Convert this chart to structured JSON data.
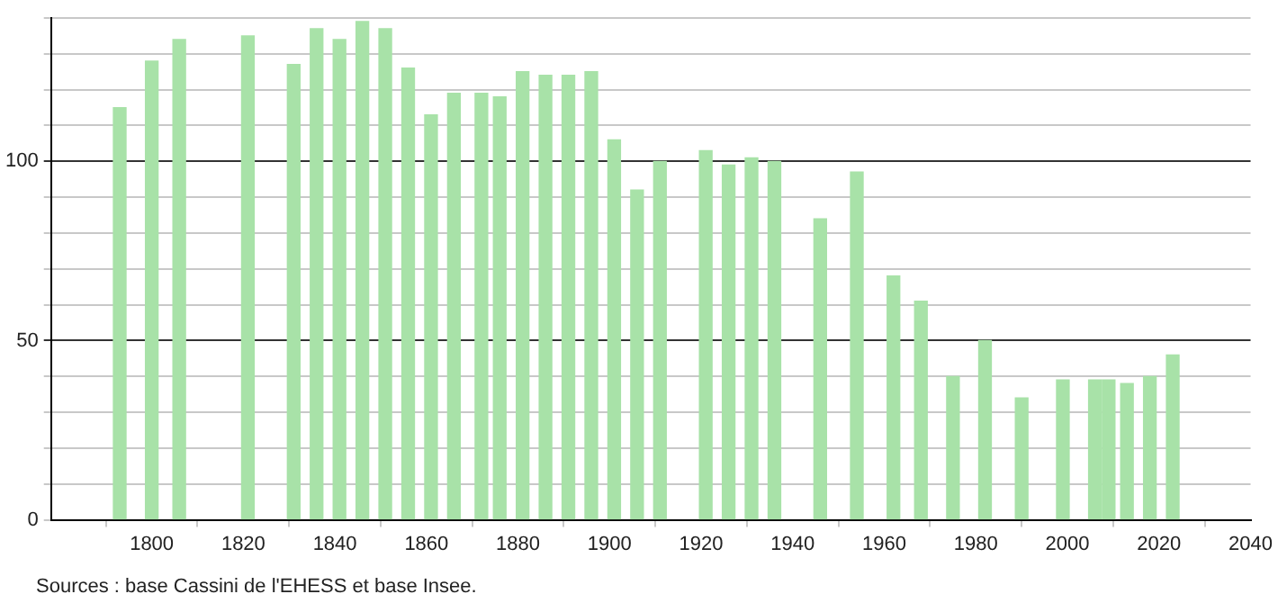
{
  "chart_data": {
    "type": "bar",
    "x": [
      1793,
      1800,
      1806,
      1821,
      1831,
      1836,
      1841,
      1846,
      1851,
      1856,
      1861,
      1866,
      1872,
      1876,
      1881,
      1886,
      1891,
      1896,
      1901,
      1906,
      1911,
      1921,
      1926,
      1931,
      1936,
      1946,
      1954,
      1962,
      1968,
      1975,
      1982,
      1990,
      1999,
      2006,
      2009,
      2013,
      2018,
      2023
    ],
    "values": [
      115,
      128,
      134,
      135,
      127,
      137,
      134,
      139,
      137,
      126,
      113,
      119,
      119,
      118,
      125,
      124,
      124,
      125,
      106,
      92,
      100,
      103,
      99,
      101,
      100,
      84,
      97,
      68,
      61,
      40,
      50,
      34,
      39,
      39,
      39,
      38,
      40,
      46
    ],
    "color": "#a8e2a8",
    "xlim": [
      1778,
      2040
    ],
    "xticks": [
      1800,
      1820,
      1840,
      1860,
      1880,
      1900,
      1920,
      1940,
      1960,
      1980,
      2000,
      2020,
      2040
    ],
    "ylim": [
      0,
      140
    ],
    "yticks": [
      0,
      {
        "value": 10,
        "label": null
      },
      {
        "value": 20,
        "label": null
      },
      {
        "value": 30,
        "label": null
      },
      {
        "value": 40,
        "label": null
      },
      50,
      {
        "value": 60,
        "label": null
      },
      {
        "value": 70,
        "label": null
      },
      {
        "value": 80,
        "label": null
      },
      {
        "value": 90,
        "label": null
      },
      100,
      {
        "value": 110,
        "label": null
      },
      {
        "value": 120,
        "label": null
      },
      {
        "value": 130,
        "label": null
      },
      {
        "value": 140,
        "label": null
      }
    ],
    "grid": "y",
    "annotations": [
      "Sources : base Cassini de l'EHESS et base Insee."
    ]
  }
}
